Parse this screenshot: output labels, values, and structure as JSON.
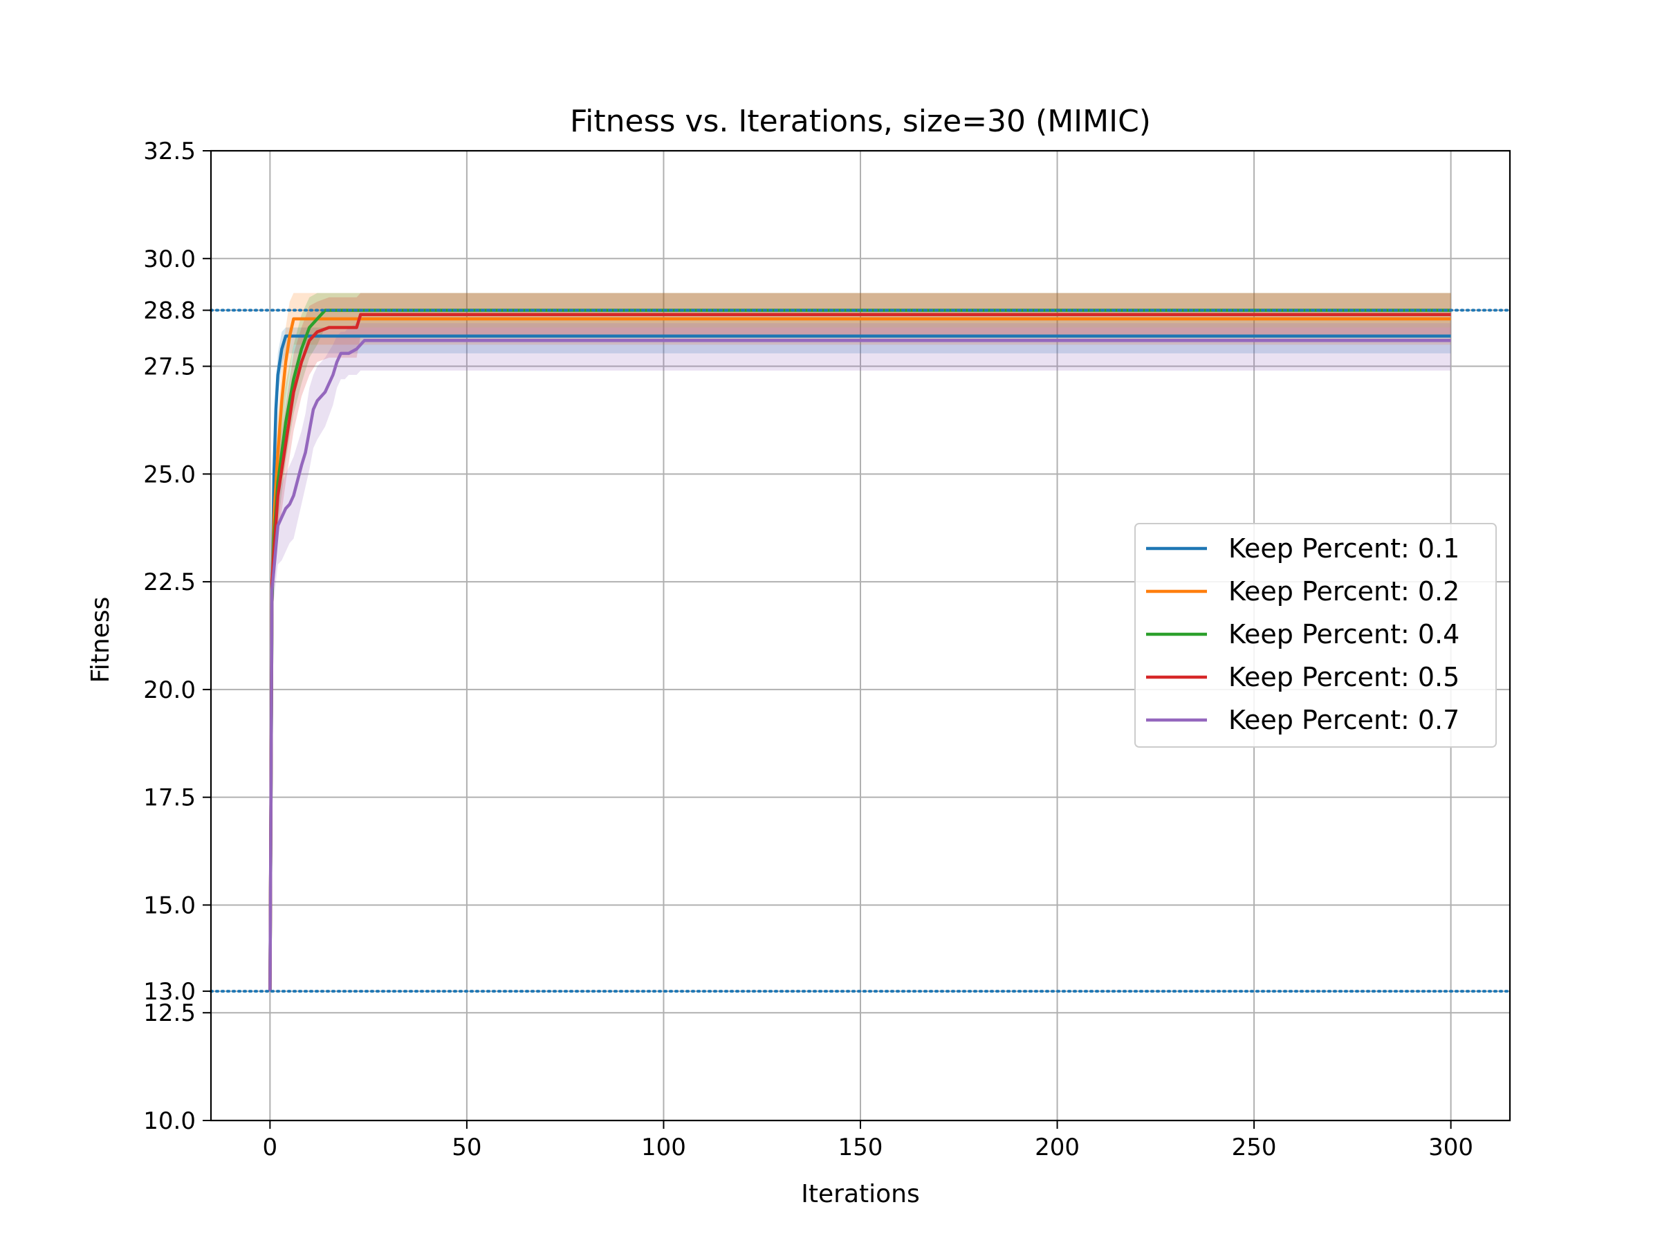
{
  "chart_data": {
    "type": "line",
    "title": "Fitness vs. Iterations, size=30 (MIMIC)",
    "xlabel": "Iterations",
    "ylabel": "Fitness",
    "xlim": [
      -15,
      315
    ],
    "ylim": [
      10.0,
      32.5
    ],
    "xticks": [
      0,
      50,
      100,
      150,
      200,
      250,
      300
    ],
    "xtick_labels": [
      "0",
      "50",
      "100",
      "150",
      "200",
      "250",
      "300"
    ],
    "yticks": [
      10.0,
      12.5,
      13.0,
      15.0,
      17.5,
      20.0,
      22.5,
      25.0,
      27.5,
      28.8,
      30.0,
      32.5
    ],
    "ytick_labels": [
      "10.0",
      "12.5",
      "13.0",
      "15.0",
      "17.5",
      "20.0",
      "22.5",
      "25.0",
      "27.5",
      "28.8",
      "30.0",
      "32.5"
    ],
    "grid": true,
    "legend_position": "center-right",
    "reference_lines": [
      {
        "y": 28.8,
        "style": "dotted",
        "color": "#1f77b4"
      },
      {
        "y": 13.0,
        "style": "dotted",
        "color": "#1f77b4"
      }
    ],
    "series": [
      {
        "name": "Keep Percent: 0.1",
        "color": "#1f77b4",
        "x": [
          0,
          0.5,
          1,
          1.5,
          2,
          3,
          4,
          300
        ],
        "y": [
          13.0,
          22.0,
          25.0,
          26.5,
          27.3,
          27.9,
          28.2,
          28.2
        ],
        "upper": [
          13.0,
          22.5,
          25.6,
          27.0,
          27.8,
          28.3,
          28.4,
          28.4
        ],
        "lower": [
          13.0,
          21.5,
          24.4,
          26.0,
          26.8,
          27.5,
          27.8,
          27.8
        ]
      },
      {
        "name": "Keep Percent: 0.2",
        "color": "#ff7f0e",
        "x": [
          0,
          0.5,
          1,
          2,
          3,
          4,
          5,
          6,
          300
        ],
        "y": [
          13.0,
          22.0,
          24.0,
          25.5,
          26.7,
          27.6,
          28.2,
          28.6,
          28.6
        ],
        "upper": [
          13.0,
          22.6,
          24.8,
          26.4,
          27.5,
          28.4,
          29.0,
          29.2,
          29.2
        ],
        "lower": [
          13.0,
          21.4,
          23.2,
          24.6,
          25.9,
          26.8,
          27.4,
          28.0,
          28.0
        ]
      },
      {
        "name": "Keep Percent: 0.4",
        "color": "#2ca02c",
        "x": [
          0,
          0.5,
          1,
          2,
          4,
          6,
          8,
          10,
          12,
          14,
          300
        ],
        "y": [
          13.0,
          22.0,
          23.5,
          24.8,
          26.2,
          27.2,
          27.9,
          28.4,
          28.6,
          28.8,
          28.8
        ],
        "upper": [
          13.0,
          22.5,
          24.3,
          25.8,
          27.1,
          28.0,
          28.7,
          29.1,
          29.2,
          29.2,
          29.2
        ],
        "lower": [
          13.0,
          21.5,
          22.7,
          23.8,
          25.3,
          26.4,
          27.1,
          27.7,
          28.0,
          28.4,
          28.4
        ]
      },
      {
        "name": "Keep Percent: 0.5",
        "color": "#d62728",
        "x": [
          0,
          0.5,
          1,
          2,
          4,
          6,
          8,
          10,
          12,
          15,
          20,
          22,
          23,
          300
        ],
        "y": [
          13.0,
          22.5,
          23.2,
          24.5,
          25.7,
          26.9,
          27.6,
          28.1,
          28.3,
          28.4,
          28.4,
          28.4,
          28.7,
          28.7
        ],
        "upper": [
          13.0,
          23.0,
          24.0,
          25.5,
          26.6,
          27.8,
          28.4,
          28.9,
          29.0,
          29.1,
          29.1,
          29.1,
          29.2,
          29.2
        ],
        "lower": [
          13.0,
          22.0,
          22.4,
          23.5,
          24.8,
          26.0,
          26.8,
          27.3,
          27.6,
          27.7,
          27.7,
          27.7,
          28.2,
          28.2
        ]
      },
      {
        "name": "Keep Percent: 0.7",
        "color": "#9467bd",
        "x": [
          0,
          0.5,
          1,
          2,
          3,
          4,
          5,
          6,
          8,
          9,
          10,
          11,
          12,
          14,
          16,
          17,
          18,
          19,
          20,
          22,
          23,
          24,
          300
        ],
        "y": [
          13.0,
          22.3,
          22.8,
          23.8,
          24.0,
          24.2,
          24.3,
          24.5,
          25.2,
          25.5,
          26.0,
          26.5,
          26.7,
          26.9,
          27.3,
          27.6,
          27.8,
          27.8,
          27.8,
          27.9,
          28.0,
          28.1,
          28.1
        ],
        "upper": [
          13.0,
          22.8,
          23.5,
          24.5,
          24.8,
          25.0,
          25.2,
          25.4,
          26.0,
          26.4,
          27.0,
          27.3,
          27.5,
          27.7,
          28.0,
          28.2,
          28.3,
          28.3,
          28.4,
          28.5,
          28.5,
          28.5,
          28.5
        ],
        "lower": [
          13.0,
          21.8,
          22.1,
          22.9,
          23.0,
          23.2,
          23.4,
          23.5,
          24.3,
          24.7,
          25.1,
          25.6,
          25.8,
          26.1,
          26.6,
          27.0,
          27.2,
          27.2,
          27.3,
          27.3,
          27.4,
          27.4,
          27.4
        ]
      }
    ]
  }
}
